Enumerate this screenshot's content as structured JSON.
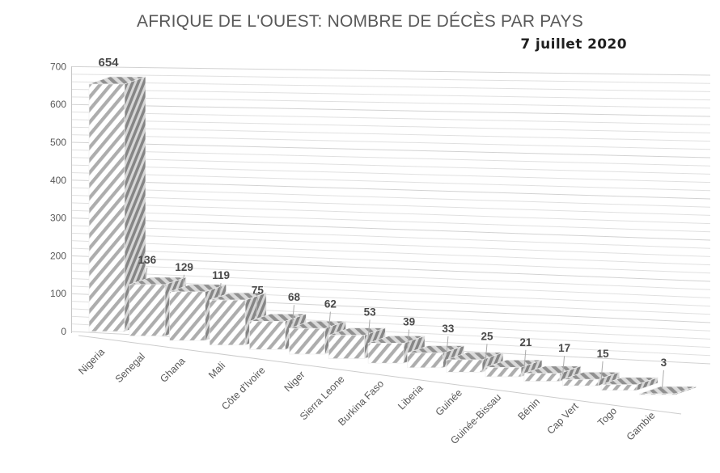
{
  "chart_data": {
    "type": "bar",
    "style": "3d-hatched-monochrome",
    "title": "AFRIQUE DE L'OUEST: NOMBRE DE DÉCÈS PAR PAYS",
    "subtitle": "7 juillet 2020",
    "categories": [
      "Nigeria",
      "Senegal",
      "Ghana",
      "Mali",
      "Côte d'Ivoire",
      "Niger",
      "Sierra Leone",
      "Burkina Faso",
      "Liberia",
      "Guinée",
      "Guinée-Bissau",
      "Bénin",
      "Cap Vert",
      "Togo",
      "Gambie"
    ],
    "values": [
      654,
      136,
      129,
      119,
      75,
      68,
      62,
      53,
      39,
      33,
      25,
      21,
      17,
      15,
      3
    ],
    "data_labels": [
      654,
      136,
      129,
      119,
      75,
      68,
      62,
      53,
      39,
      33,
      25,
      21,
      17,
      15,
      3
    ],
    "xlabel": "",
    "ylabel": "",
    "ylim": [
      0,
      700
    ],
    "yticks": [
      0,
      100,
      200,
      300,
      400,
      500,
      600,
      700
    ],
    "minor_gridline_step": 20,
    "grid": true,
    "legend": false,
    "colors": {
      "title_text": "#595959",
      "subtitle_text": "#1f1f1f",
      "axis_text": "#595959",
      "data_label_text": "#4a4a4a",
      "gridline_major": "#d2d2d2",
      "gridline_minor": "#e0e0e0",
      "axis_line": "#c6c6c6",
      "floor_edge": "#cccccc",
      "hatch_front_stripe": "#adadad",
      "hatch_front_bg": "#ffffff",
      "hatch_top_stripe": "#909090",
      "hatch_top_bg": "#dadada",
      "hatch_side_stripe": "#868686",
      "hatch_side_bg": "#d6d6d6",
      "leader_line": "#ababab"
    }
  }
}
